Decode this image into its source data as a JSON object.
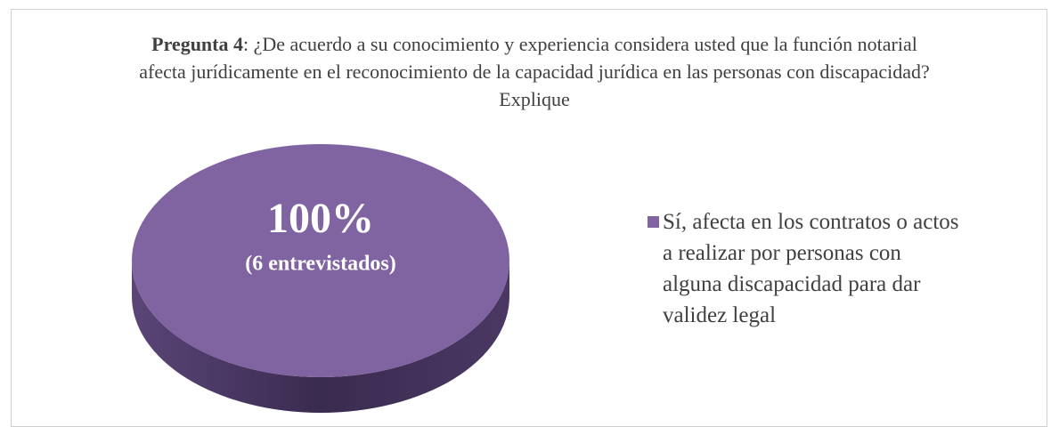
{
  "chart_data": {
    "type": "pie",
    "title_prefix": "Pregunta 4",
    "title": ": ¿De acuerdo a su conocimiento y experiencia considera usted que la función notarial afecta jurídicamente en el reconocimiento de la   capacidad jurídica en las personas con discapacidad? Explique",
    "categories": [
      "Sí, afecta en los contratos o actos a realizar por personas con alguna discapacidad para dar validez legal"
    ],
    "values": [
      100
    ],
    "value_labels": [
      "100%"
    ],
    "counts": [
      6
    ],
    "count_labels": [
      "(6 entrevistados)"
    ],
    "colors": [
      "#8064a2"
    ],
    "legend": "right"
  }
}
